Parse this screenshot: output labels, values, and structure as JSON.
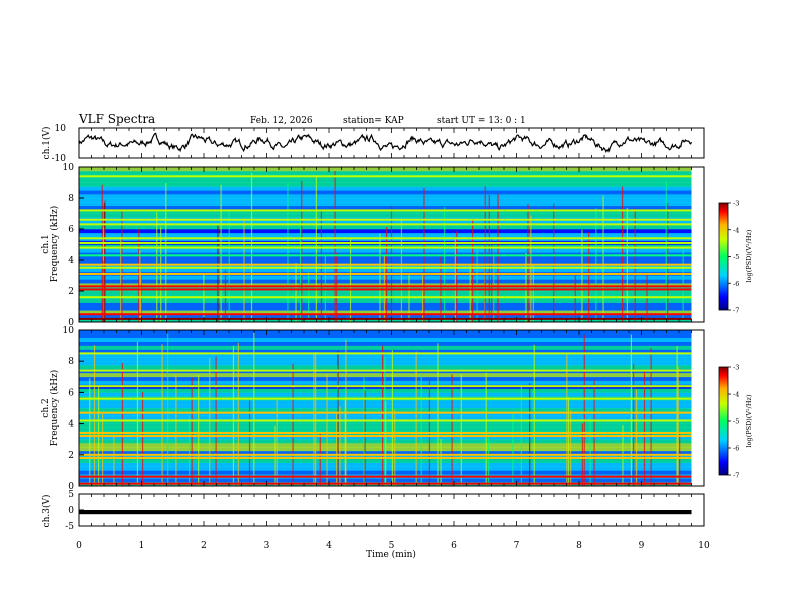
{
  "header": {
    "title": "VLF Spectra",
    "date": "Feb. 12, 2026",
    "station": "station= KAP",
    "start": "start  UT =   13: 0  : 1"
  },
  "chart_data": [
    {
      "type": "line",
      "name": "ch.1 waveform",
      "ylabel": "ch.1(V)",
      "ylim": [
        -10,
        10
      ],
      "y_ticks": [
        "10",
        "-10"
      ],
      "xlim": [
        0,
        10
      ],
      "series_summary": "black trace oscillating mostly between about -5 and +5 V over 0 to 9.8 min"
    },
    {
      "type": "heatmap",
      "name": "ch.1 spectrogram",
      "ylabel": "ch.1\nFrequency (kHz)",
      "ylim": [
        0,
        10
      ],
      "y_ticks": [
        "0",
        "2",
        "4",
        "6",
        "8",
        "10"
      ],
      "xlim": [
        0,
        10
      ],
      "data_end_min": 9.8,
      "colorbar": {
        "label": "log(PSD)(V²/Hz)",
        "range": [
          -7,
          -3
        ],
        "ticks": [
          "-3",
          "-4",
          "-5",
          "-6",
          "-7"
        ]
      },
      "bands_khz": [
        {
          "f": 0.2,
          "level": -3.2
        },
        {
          "f": 0.5,
          "level": -3.6
        },
        {
          "f": 1.6,
          "level": -4.6
        },
        {
          "f": 2.1,
          "level": -3.6
        },
        {
          "f": 2.3,
          "level": -3.4
        },
        {
          "f": 3.1,
          "level": -4.2
        },
        {
          "f": 3.5,
          "level": -4.6
        },
        {
          "f": 3.7,
          "level": -3.9
        },
        {
          "f": 4.3,
          "level": -4.8
        },
        {
          "f": 4.8,
          "level": -4.5
        },
        {
          "f": 5.1,
          "level": -4.4
        },
        {
          "f": 5.4,
          "level": -4.3
        },
        {
          "f": 6.3,
          "level": -4.6
        },
        {
          "f": 6.6,
          "level": -4.5
        },
        {
          "f": 7.2,
          "level": -4.4
        },
        {
          "f": 9.4,
          "level": -4.4
        }
      ]
    },
    {
      "type": "heatmap",
      "name": "ch.2 spectrogram",
      "ylabel": "ch.2\nFrequency (kHz)",
      "ylim": [
        0,
        10
      ],
      "y_ticks": [
        "0",
        "2",
        "4",
        "6",
        "8",
        "10"
      ],
      "xlim": [
        0,
        10
      ],
      "data_end_min": 9.8,
      "colorbar": {
        "label": "log(PSD)(V²/Hz)",
        "range": [
          -7,
          -3
        ],
        "ticks": [
          "-3",
          "-4",
          "-5",
          "-6",
          "-7"
        ]
      },
      "bands_khz": [
        {
          "f": 0.15,
          "level": -3.3
        },
        {
          "f": 0.6,
          "level": -3.5
        },
        {
          "f": 1.8,
          "level": -4.2
        },
        {
          "f": 2.0,
          "level": -3.8
        },
        {
          "f": 3.2,
          "level": -4.1
        },
        {
          "f": 3.4,
          "level": -3.9
        },
        {
          "f": 4.2,
          "level": -4.3
        },
        {
          "f": 4.7,
          "level": -4.2
        },
        {
          "f": 5.6,
          "level": -4.5
        },
        {
          "f": 6.4,
          "level": -4.6
        },
        {
          "f": 7.4,
          "level": -4.4
        },
        {
          "f": 8.5,
          "level": -4.3
        }
      ]
    },
    {
      "type": "line",
      "name": "ch.3 waveform",
      "ylabel": "ch.3(V)",
      "ylim": [
        -5,
        5
      ],
      "y_ticks": [
        "5",
        "0",
        "-5"
      ],
      "xlim": [
        0,
        10
      ],
      "data_end_min": 9.8,
      "level_band": [
        -1,
        0
      ],
      "series_summary": "thick flat black band near -1 V"
    }
  ],
  "x_axis": {
    "label": "Time (min)",
    "ticks": [
      "0",
      "1",
      "2",
      "3",
      "4",
      "5",
      "6",
      "7",
      "8",
      "9",
      "10"
    ]
  },
  "colors": {
    "axis": "#000000",
    "colormap": [
      "#00007f",
      "#0000ff",
      "#0070ff",
      "#00e0ff",
      "#00ff80",
      "#c0ff00",
      "#ffc000",
      "#ff0000",
      "#800000"
    ]
  }
}
